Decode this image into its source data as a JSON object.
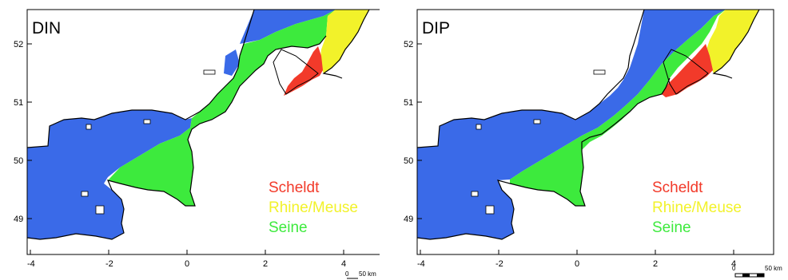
{
  "colors": {
    "scheldt": "#f23a2a",
    "rhine_meuse": "#f2f22a",
    "seine": "#3dea3d",
    "other": "#3a6ae8",
    "land": "#ffffff",
    "coast": "#000000"
  },
  "axes": {
    "x_ticks": [
      "-4",
      "-2",
      "0",
      "2",
      "4"
    ],
    "y_ticks": [
      "52",
      "51",
      "50",
      "49"
    ]
  },
  "legend": [
    {
      "label": "Scheldt",
      "color": "#f23a2a"
    },
    {
      "label": "Rhine/Meuse",
      "color": "#f2f22a"
    },
    {
      "label": "Seine",
      "color": "#3dea3d"
    }
  ],
  "scale_bar": {
    "start_label": "0",
    "end_label": "50 km"
  },
  "panels": [
    {
      "title": "DIN"
    },
    {
      "title": "DIP"
    }
  ]
}
